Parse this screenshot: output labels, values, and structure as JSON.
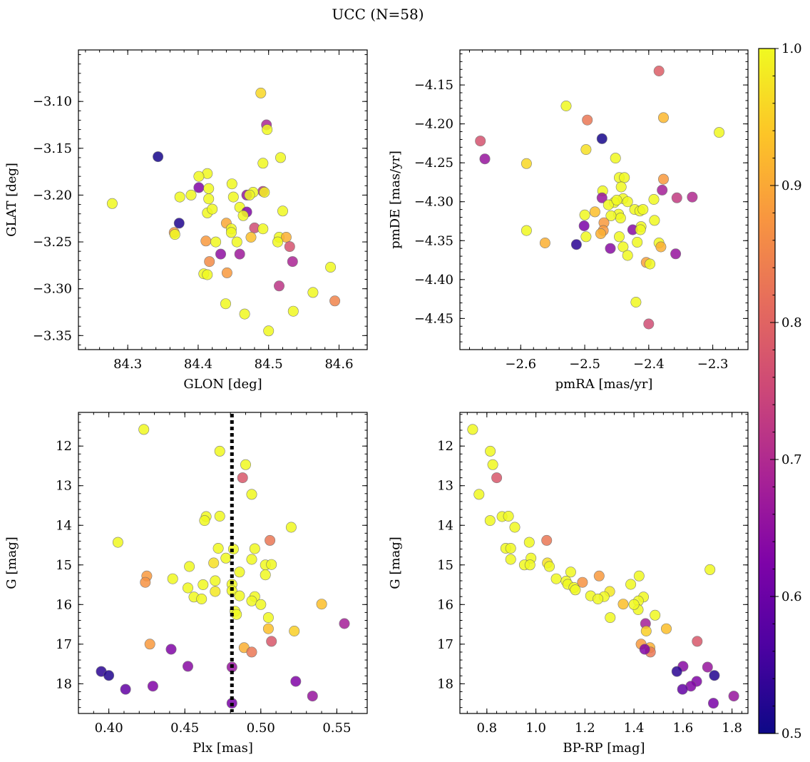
{
  "figure": {
    "title": "UCC (N=58)"
  },
  "colorbar": {
    "range": [
      0.5,
      1.0
    ],
    "colormap": "plasma",
    "ticks": [
      0.5,
      0.6,
      0.7,
      0.8,
      0.9,
      1.0
    ],
    "tick_labels": [
      "0.5",
      "0.6",
      "0.7",
      "0.8",
      "0.9",
      "1.0"
    ]
  },
  "chart_data": [
    {
      "type": "scatter",
      "panel": "top-left",
      "xlabel": "GLON [deg]",
      "ylabel": "GLAT [deg]",
      "xlim": [
        84.23,
        84.64
      ],
      "ylim": [
        -3.365,
        -3.045
      ],
      "y_inverted": false,
      "xticks": [
        84.3,
        84.4,
        84.5,
        84.6
      ],
      "xtick_labels": [
        "84.3",
        "84.4",
        "84.5",
        "84.6"
      ],
      "yticks": [
        -3.35,
        -3.3,
        -3.25,
        -3.2,
        -3.15,
        -3.1
      ],
      "ytick_labels": [
        "−3.35",
        "−3.30",
        "−3.25",
        "−3.20",
        "−3.15",
        "−3.10"
      ],
      "points": [
        [
          84.489,
          -3.091,
          0.96
        ],
        [
          84.497,
          -3.125,
          0.69
        ],
        [
          84.498,
          -3.13,
          1.0
        ],
        [
          84.343,
          -3.159,
          0.51
        ],
        [
          84.517,
          -3.16,
          1.0
        ],
        [
          84.492,
          -3.166,
          1.0
        ],
        [
          84.413,
          -3.177,
          1.0
        ],
        [
          84.401,
          -3.18,
          1.0
        ],
        [
          84.401,
          -3.192,
          0.63
        ],
        [
          84.415,
          -3.193,
          1.0
        ],
        [
          84.448,
          -3.188,
          1.0
        ],
        [
          84.492,
          -3.196,
          0.72
        ],
        [
          84.494,
          -3.197,
          0.99
        ],
        [
          84.478,
          -3.197,
          1.0
        ],
        [
          84.469,
          -3.2,
          0.66
        ],
        [
          84.473,
          -3.2,
          1.0
        ],
        [
          84.39,
          -3.2,
          1.0
        ],
        [
          84.374,
          -3.202,
          1.0
        ],
        [
          84.45,
          -3.202,
          1.0
        ],
        [
          84.415,
          -3.204,
          1.0
        ],
        [
          84.278,
          -3.209,
          1.0
        ],
        [
          84.459,
          -3.213,
          1.0
        ],
        [
          84.469,
          -3.218,
          0.63
        ],
        [
          84.464,
          -3.222,
          1.0
        ],
        [
          84.413,
          -3.219,
          1.0
        ],
        [
          84.52,
          -3.217,
          1.0
        ],
        [
          84.373,
          -3.23,
          0.52
        ],
        [
          84.44,
          -3.23,
          0.9
        ],
        [
          84.447,
          -3.236,
          1.0
        ],
        [
          84.48,
          -3.235,
          0.76
        ],
        [
          84.492,
          -3.236,
          1.0
        ],
        [
          84.447,
          -3.24,
          1.0
        ],
        [
          84.366,
          -3.24,
          0.88
        ],
        [
          84.367,
          -3.242,
          1.0
        ],
        [
          84.475,
          -3.245,
          0.93
        ],
        [
          84.515,
          -3.245,
          1.0
        ],
        [
          84.525,
          -3.245,
          0.91
        ],
        [
          84.411,
          -3.249,
          0.88
        ],
        [
          84.425,
          -3.25,
          1.0
        ],
        [
          84.513,
          -3.25,
          1.0
        ],
        [
          84.53,
          -3.255,
          0.77
        ],
        [
          84.432,
          -3.263,
          0.65
        ],
        [
          84.459,
          -3.263,
          0.67
        ],
        [
          84.416,
          -3.271,
          0.86
        ],
        [
          84.534,
          -3.271,
          0.69
        ],
        [
          84.588,
          -3.277,
          1.0
        ],
        [
          84.408,
          -3.284,
          1.0
        ],
        [
          84.413,
          -3.285,
          1.0
        ],
        [
          84.441,
          -3.283,
          0.88
        ],
        [
          84.515,
          -3.297,
          0.72
        ],
        [
          84.563,
          -3.304,
          1.0
        ],
        [
          84.594,
          -3.313,
          0.85
        ],
        [
          84.439,
          -3.316,
          1.0
        ],
        [
          84.466,
          -3.327,
          1.0
        ],
        [
          84.535,
          -3.324,
          1.0
        ],
        [
          84.5,
          -3.345,
          1.0
        ],
        [
          84.42,
          -3.215,
          1.0
        ],
        [
          84.455,
          -3.25,
          1.0
        ]
      ]
    },
    {
      "type": "scatter",
      "panel": "top-right",
      "xlabel": "pmRA [mas/yr]",
      "ylabel": "pmDE [mas/yr]",
      "xlim": [
        -2.695,
        -2.245
      ],
      "ylim": [
        -4.49,
        -4.105
      ],
      "y_inverted": false,
      "xticks": [
        -2.6,
        -2.5,
        -2.4,
        -2.3
      ],
      "xtick_labels": [
        "−2.6",
        "−2.5",
        "−2.4",
        "−2.3"
      ],
      "yticks": [
        -4.45,
        -4.4,
        -4.35,
        -4.3,
        -4.25,
        -4.2,
        -4.15
      ],
      "ytick_labels": [
        "−4.45",
        "−4.40",
        "−4.35",
        "−4.30",
        "−4.25",
        "−4.20",
        "−4.15"
      ],
      "points": [
        [
          -2.384,
          -4.132,
          0.79
        ],
        [
          -2.529,
          -4.177,
          1.0
        ],
        [
          -2.496,
          -4.195,
          0.83
        ],
        [
          -2.377,
          -4.192,
          0.92
        ],
        [
          -2.29,
          -4.211,
          1.0
        ],
        [
          -2.473,
          -4.219,
          0.51
        ],
        [
          -2.663,
          -4.222,
          0.77
        ],
        [
          -2.656,
          -4.245,
          0.66
        ],
        [
          -2.498,
          -4.233,
          0.97
        ],
        [
          -2.591,
          -4.251,
          0.96
        ],
        [
          -2.452,
          -4.244,
          1.0
        ],
        [
          -2.446,
          -4.269,
          1.0
        ],
        [
          -2.438,
          -4.269,
          1.0
        ],
        [
          -2.443,
          -4.281,
          1.0
        ],
        [
          -2.472,
          -4.286,
          1.0
        ],
        [
          -2.377,
          -4.271,
          0.88
        ],
        [
          -2.473,
          -4.295,
          0.66
        ],
        [
          -2.44,
          -4.296,
          1.0
        ],
        [
          -2.433,
          -4.3,
          1.0
        ],
        [
          -2.454,
          -4.301,
          1.0
        ],
        [
          -2.463,
          -4.304,
          1.0
        ],
        [
          -2.379,
          -4.285,
          0.68
        ],
        [
          -2.356,
          -4.295,
          0.73
        ],
        [
          -2.332,
          -4.294,
          0.7
        ],
        [
          -2.392,
          -4.297,
          1.0
        ],
        [
          -2.422,
          -4.31,
          1.0
        ],
        [
          -2.414,
          -4.312,
          1.0
        ],
        [
          -2.409,
          -4.31,
          1.0
        ],
        [
          -2.5,
          -4.317,
          1.0
        ],
        [
          -2.484,
          -4.313,
          0.93
        ],
        [
          -2.447,
          -4.316,
          1.0
        ],
        [
          -2.444,
          -4.321,
          1.0
        ],
        [
          -2.459,
          -4.318,
          1.0
        ],
        [
          -2.391,
          -4.324,
          1.0
        ],
        [
          -2.412,
          -4.332,
          1.0
        ],
        [
          -2.47,
          -4.327,
          0.88
        ],
        [
          -2.501,
          -4.331,
          0.62
        ],
        [
          -2.471,
          -4.337,
          0.88
        ],
        [
          -2.425,
          -4.336,
          0.64
        ],
        [
          -2.413,
          -4.336,
          1.0
        ],
        [
          -2.591,
          -4.337,
          1.0
        ],
        [
          -2.498,
          -4.345,
          1.0
        ],
        [
          -2.475,
          -4.341,
          0.91
        ],
        [
          -2.446,
          -4.345,
          1.0
        ],
        [
          -2.418,
          -4.352,
          1.0
        ],
        [
          -2.384,
          -4.353,
          1.0
        ],
        [
          -2.381,
          -4.358,
          0.91
        ],
        [
          -2.562,
          -4.353,
          0.91
        ],
        [
          -2.513,
          -4.355,
          0.53
        ],
        [
          -2.46,
          -4.36,
          0.64
        ],
        [
          -2.44,
          -4.358,
          1.0
        ],
        [
          -2.433,
          -4.369,
          1.0
        ],
        [
          -2.358,
          -4.367,
          0.66
        ],
        [
          -2.404,
          -4.378,
          0.89
        ],
        [
          -2.398,
          -4.38,
          1.0
        ],
        [
          -2.42,
          -4.429,
          1.0
        ],
        [
          -2.4,
          -4.457,
          0.76
        ],
        [
          -2.45,
          -4.298,
          1.0
        ]
      ]
    },
    {
      "type": "scatter",
      "panel": "bottom-left",
      "xlabel": "Plx [mas]",
      "ylabel": "G [mag]",
      "xlim": [
        0.38,
        0.57
      ],
      "ylim": [
        11.15,
        18.75
      ],
      "y_inverted": true,
      "xticks": [
        0.4,
        0.45,
        0.5,
        0.55
      ],
      "xtick_labels": [
        "0.40",
        "0.45",
        "0.50",
        "0.55"
      ],
      "yticks": [
        12,
        13,
        14,
        15,
        16,
        17,
        18
      ],
      "ytick_labels": [
        "12",
        "13",
        "14",
        "15",
        "16",
        "17",
        "18"
      ],
      "reference_line": {
        "axis": "x",
        "value": 0.481,
        "style": "dotted"
      },
      "points": [
        [
          0.423,
          11.58,
          1.0
        ],
        [
          0.473,
          12.13,
          1.0
        ],
        [
          0.49,
          12.47,
          1.0
        ],
        [
          0.488,
          12.8,
          0.78
        ],
        [
          0.494,
          13.22,
          1.0
        ],
        [
          0.464,
          13.78,
          1.0
        ],
        [
          0.473,
          13.77,
          1.0
        ],
        [
          0.463,
          13.88,
          1.0
        ],
        [
          0.52,
          14.05,
          1.0
        ],
        [
          0.506,
          14.38,
          0.83
        ],
        [
          0.406,
          14.43,
          1.0
        ],
        [
          0.472,
          14.58,
          1.0
        ],
        [
          0.482,
          14.6,
          1.0
        ],
        [
          0.496,
          14.59,
          1.0
        ],
        [
          0.477,
          14.83,
          1.0
        ],
        [
          0.494,
          14.86,
          1.0
        ],
        [
          0.469,
          14.95,
          0.97
        ],
        [
          0.503,
          15.0,
          1.0
        ],
        [
          0.507,
          14.99,
          1.0
        ],
        [
          0.453,
          15.04,
          1.0
        ],
        [
          0.486,
          15.18,
          1.0
        ],
        [
          0.425,
          15.28,
          0.88
        ],
        [
          0.503,
          15.25,
          1.0
        ],
        [
          0.442,
          15.35,
          1.0
        ],
        [
          0.47,
          15.4,
          1.0
        ],
        [
          0.424,
          15.44,
          0.87
        ],
        [
          0.481,
          15.49,
          1.0
        ],
        [
          0.462,
          15.5,
          1.0
        ],
        [
          0.452,
          15.58,
          1.0
        ],
        [
          0.47,
          15.67,
          0.98
        ],
        [
          0.481,
          15.65,
          1.0
        ],
        [
          0.486,
          15.78,
          1.0
        ],
        [
          0.496,
          15.8,
          1.0
        ],
        [
          0.456,
          15.81,
          1.0
        ],
        [
          0.461,
          15.86,
          1.0
        ],
        [
          0.494,
          15.91,
          1.0
        ],
        [
          0.54,
          15.99,
          0.93
        ],
        [
          0.483,
          16.17,
          1.0
        ],
        [
          0.484,
          16.25,
          1.0
        ],
        [
          0.505,
          16.33,
          1.0
        ],
        [
          0.555,
          16.48,
          0.68
        ],
        [
          0.505,
          16.61,
          0.93
        ],
        [
          0.522,
          16.67,
          0.95
        ],
        [
          0.507,
          16.93,
          0.78
        ],
        [
          0.427,
          17.0,
          0.88
        ],
        [
          0.489,
          17.09,
          0.91
        ],
        [
          0.494,
          17.2,
          0.83
        ],
        [
          0.441,
          17.13,
          0.63
        ],
        [
          0.452,
          17.56,
          0.64
        ],
        [
          0.481,
          17.58,
          0.66
        ],
        [
          0.395,
          17.69,
          0.53
        ],
        [
          0.4,
          17.79,
          0.52
        ],
        [
          0.523,
          17.94,
          0.63
        ],
        [
          0.429,
          18.06,
          0.63
        ],
        [
          0.411,
          18.14,
          0.59
        ],
        [
          0.534,
          18.31,
          0.66
        ],
        [
          0.481,
          18.49,
          0.62
        ],
        [
          0.5,
          16.0,
          1.0
        ]
      ]
    },
    {
      "type": "scatter",
      "panel": "bottom-right",
      "xlabel": "BP-RP [mag]",
      "ylabel": "G [mag]",
      "xlim": [
        0.69,
        1.865
      ],
      "ylim": [
        11.15,
        18.75
      ],
      "y_inverted": true,
      "xticks": [
        0.8,
        1.0,
        1.2,
        1.4,
        1.6,
        1.8
      ],
      "xtick_labels": [
        "0.8",
        "1.0",
        "1.2",
        "1.4",
        "1.6",
        "1.8"
      ],
      "yticks": [
        12,
        13,
        14,
        15,
        16,
        17,
        18
      ],
      "ytick_labels": [
        "12",
        "13",
        "14",
        "15",
        "16",
        "17",
        "18"
      ],
      "points": [
        [
          0.742,
          11.58,
          1.0
        ],
        [
          0.814,
          12.13,
          1.0
        ],
        [
          0.824,
          12.47,
          1.0
        ],
        [
          0.84,
          12.8,
          0.78
        ],
        [
          0.768,
          13.22,
          1.0
        ],
        [
          0.862,
          13.78,
          1.0
        ],
        [
          0.888,
          13.77,
          1.0
        ],
        [
          0.813,
          13.88,
          1.0
        ],
        [
          0.914,
          14.05,
          1.0
        ],
        [
          1.044,
          14.38,
          0.83
        ],
        [
          0.973,
          14.43,
          1.0
        ],
        [
          0.877,
          14.58,
          1.0
        ],
        [
          0.897,
          14.58,
          1.0
        ],
        [
          0.98,
          14.83,
          1.0
        ],
        [
          0.897,
          14.86,
          1.0
        ],
        [
          1.047,
          14.95,
          0.97
        ],
        [
          0.953,
          15.0,
          1.0
        ],
        [
          0.976,
          15.0,
          1.0
        ],
        [
          1.055,
          15.04,
          1.0
        ],
        [
          1.71,
          15.12,
          1.0
        ],
        [
          1.142,
          15.18,
          1.0
        ],
        [
          1.258,
          15.28,
          0.88
        ],
        [
          1.421,
          15.28,
          1.0
        ],
        [
          1.083,
          15.35,
          1.0
        ],
        [
          1.123,
          15.41,
          1.0
        ],
        [
          1.19,
          15.44,
          0.87
        ],
        [
          1.13,
          15.49,
          1.0
        ],
        [
          1.387,
          15.49,
          1.0
        ],
        [
          1.155,
          15.57,
          1.0
        ],
        [
          1.161,
          15.63,
          1.0
        ],
        [
          1.301,
          15.67,
          0.98
        ],
        [
          1.223,
          15.78,
          1.0
        ],
        [
          1.278,
          15.8,
          1.0
        ],
        [
          1.439,
          15.81,
          1.0
        ],
        [
          1.253,
          15.86,
          1.0
        ],
        [
          1.418,
          15.91,
          1.0
        ],
        [
          1.356,
          15.99,
          0.93
        ],
        [
          1.417,
          16.13,
          1.0
        ],
        [
          1.486,
          16.27,
          1.0
        ],
        [
          1.303,
          16.33,
          1.0
        ],
        [
          1.447,
          16.48,
          0.68
        ],
        [
          1.532,
          16.61,
          0.93
        ],
        [
          1.45,
          16.67,
          0.95
        ],
        [
          1.658,
          16.93,
          0.78
        ],
        [
          1.429,
          17.0,
          0.88
        ],
        [
          1.465,
          17.09,
          0.91
        ],
        [
          1.467,
          17.2,
          0.83
        ],
        [
          1.444,
          17.13,
          0.63
        ],
        [
          1.6,
          17.56,
          0.64
        ],
        [
          1.7,
          17.58,
          0.66
        ],
        [
          1.575,
          17.69,
          0.53
        ],
        [
          1.728,
          17.79,
          0.52
        ],
        [
          1.656,
          17.94,
          0.63
        ],
        [
          1.632,
          18.06,
          0.63
        ],
        [
          1.598,
          18.14,
          0.59
        ],
        [
          1.807,
          18.31,
          0.66
        ],
        [
          1.724,
          18.49,
          0.62
        ],
        [
          1.4,
          16.0,
          1.0
        ]
      ]
    }
  ]
}
